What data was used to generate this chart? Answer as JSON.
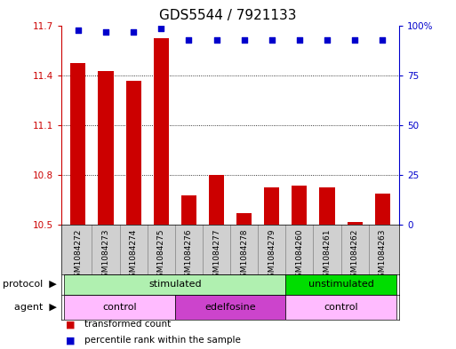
{
  "title": "GDS5544 / 7921133",
  "samples": [
    "GSM1084272",
    "GSM1084273",
    "GSM1084274",
    "GSM1084275",
    "GSM1084276",
    "GSM1084277",
    "GSM1084278",
    "GSM1084279",
    "GSM1084260",
    "GSM1084261",
    "GSM1084262",
    "GSM1084263"
  ],
  "bar_values": [
    11.48,
    11.43,
    11.37,
    11.63,
    10.68,
    10.8,
    10.57,
    10.73,
    10.74,
    10.73,
    10.52,
    10.69
  ],
  "percentile_values": [
    98,
    97,
    97,
    99,
    93,
    93,
    93,
    93,
    93,
    93,
    93,
    93
  ],
  "ylim_left": [
    10.5,
    11.7
  ],
  "ylim_right": [
    0,
    100
  ],
  "yticks_left": [
    10.5,
    10.8,
    11.1,
    11.4,
    11.7
  ],
  "yticks_right": [
    0,
    25,
    50,
    75,
    100
  ],
  "ytick_labels_left": [
    "10.5",
    "10.8",
    "11.1",
    "11.4",
    "11.7"
  ],
  "ytick_labels_right": [
    "0",
    "25",
    "50",
    "75",
    "100%"
  ],
  "bar_color": "#cc0000",
  "dot_color": "#0000cc",
  "background_color": "#ffffff",
  "protocol_groups": [
    {
      "label": "stimulated",
      "start": 0,
      "end": 7,
      "color": "#b0f0b0"
    },
    {
      "label": "unstimulated",
      "start": 8,
      "end": 11,
      "color": "#00dd00"
    }
  ],
  "agent_groups": [
    {
      "label": "control",
      "start": 0,
      "end": 3,
      "color": "#ffbbff"
    },
    {
      "label": "edelfosine",
      "start": 4,
      "end": 7,
      "color": "#cc44cc"
    },
    {
      "label": "control",
      "start": 8,
      "end": 11,
      "color": "#ffbbff"
    }
  ],
  "legend_items": [
    {
      "label": "transformed count",
      "color": "#cc0000"
    },
    {
      "label": "percentile rank within the sample",
      "color": "#0000cc"
    }
  ],
  "title_fontsize": 11,
  "tick_fontsize": 7.5,
  "sample_fontsize": 6.5,
  "label_fontsize": 8
}
